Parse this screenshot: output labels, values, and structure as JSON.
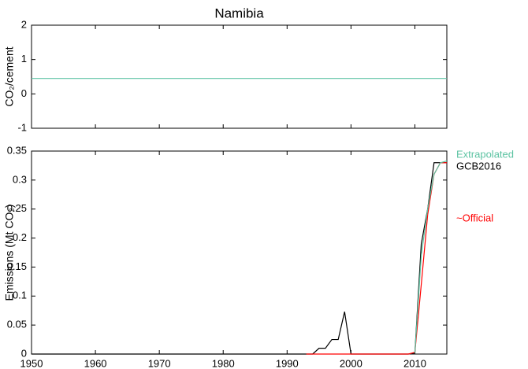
{
  "chart_data": [
    {
      "type": "line",
      "title": "Namibia",
      "y_label": "CO₂/cement",
      "x": [
        1950,
        2015
      ],
      "series": [
        {
          "name": "Extrapolated",
          "color": "#5cc3a2",
          "values": [
            0.45,
            0.45
          ]
        }
      ],
      "xlim": [
        1950,
        2015
      ],
      "ylim": [
        -1,
        2
      ],
      "yticks": [
        -1,
        0,
        1,
        2
      ]
    },
    {
      "type": "line",
      "y_label": "Emissions (Mt CO₂)",
      "x": [
        1950,
        1951,
        1952,
        1953,
        1954,
        1955,
        1956,
        1957,
        1958,
        1959,
        1960,
        1961,
        1962,
        1963,
        1964,
        1965,
        1966,
        1967,
        1968,
        1969,
        1970,
        1971,
        1972,
        1973,
        1974,
        1975,
        1976,
        1977,
        1978,
        1979,
        1980,
        1981,
        1982,
        1983,
        1984,
        1985,
        1986,
        1987,
        1988,
        1989,
        1990,
        1991,
        1992,
        1993,
        1994,
        1995,
        1996,
        1997,
        1998,
        1999,
        2000,
        2001,
        2002,
        2003,
        2004,
        2005,
        2006,
        2007,
        2008,
        2009,
        2010,
        2011,
        2012,
        2013,
        2014,
        2015
      ],
      "series": [
        {
          "name": "GCB2016",
          "color": "#000000",
          "values": [
            0,
            0,
            0,
            0,
            0,
            0,
            0,
            0,
            0,
            0,
            0,
            0,
            0,
            0,
            0,
            0,
            0,
            0,
            0,
            0,
            0,
            0,
            0,
            0,
            0,
            0,
            0,
            0,
            0,
            0,
            0,
            0,
            0,
            0,
            0,
            0,
            0,
            0,
            0,
            0,
            0,
            0,
            0,
            0,
            0,
            0.01,
            0.01,
            0.025,
            0.025,
            0.073,
            0,
            0,
            0,
            0,
            0,
            0,
            0,
            0,
            0,
            0,
            0.002,
            0.19,
            0.25,
            0.33,
            0.33,
            0.33
          ]
        },
        {
          "name": "~Official",
          "color": "#ff0000",
          "values": [
            null,
            null,
            null,
            null,
            null,
            null,
            null,
            null,
            null,
            null,
            null,
            null,
            null,
            null,
            null,
            null,
            null,
            null,
            null,
            null,
            null,
            null,
            null,
            null,
            null,
            null,
            null,
            null,
            null,
            null,
            null,
            null,
            null,
            null,
            null,
            null,
            null,
            null,
            null,
            null,
            null,
            null,
            null,
            0,
            0,
            0,
            0,
            0,
            0,
            0,
            0,
            0,
            0,
            0,
            0,
            0,
            0,
            0,
            0,
            0,
            0.003,
            0.12,
            0.24,
            0.31,
            0.33,
            0.33
          ]
        },
        {
          "name": "Extrapolated",
          "color": "#5cc3a2",
          "values": [
            null,
            null,
            null,
            null,
            null,
            null,
            null,
            null,
            null,
            null,
            null,
            null,
            null,
            null,
            null,
            null,
            null,
            null,
            null,
            null,
            null,
            null,
            null,
            null,
            null,
            null,
            null,
            null,
            null,
            null,
            null,
            null,
            null,
            null,
            null,
            null,
            null,
            null,
            null,
            null,
            null,
            null,
            null,
            null,
            null,
            null,
            null,
            null,
            null,
            null,
            null,
            null,
            null,
            null,
            null,
            null,
            null,
            null,
            null,
            null,
            0.002,
            0.17,
            0.25,
            0.31,
            0.33,
            0.333
          ]
        }
      ],
      "xlim": [
        1950,
        2015
      ],
      "xticks": [
        1950,
        1960,
        1970,
        1980,
        1990,
        2000,
        2010
      ],
      "ylim": [
        0,
        0.35
      ],
      "yticks": [
        0,
        0.05,
        0.1,
        0.15,
        0.2,
        0.25,
        0.3,
        0.35
      ]
    }
  ]
}
